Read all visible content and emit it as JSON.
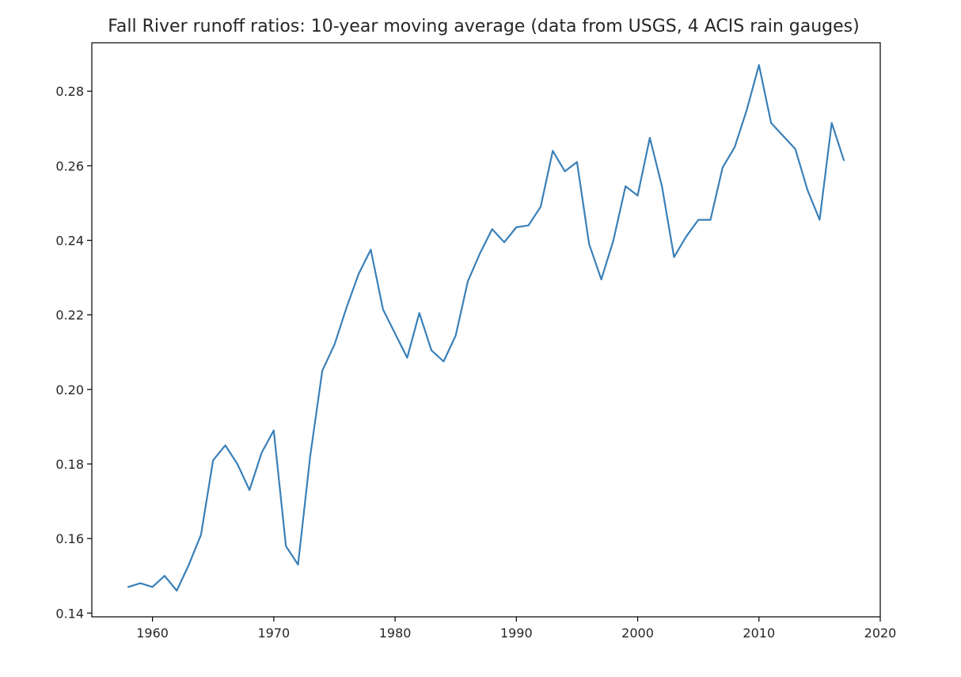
{
  "chart_data": {
    "type": "line",
    "title": "Fall River runoff ratios: 10-year moving average (data from USGS, 4 ACIS rain gauges)",
    "xlabel": "",
    "ylabel": "",
    "xlim": [
      1955,
      2020
    ],
    "ylim": [
      0.139,
      0.293
    ],
    "xticks": [
      1960,
      1970,
      1980,
      1990,
      2000,
      2010,
      2020
    ],
    "xtick_labels": [
      "1960",
      "1970",
      "1980",
      "1990",
      "2000",
      "2010",
      "2020"
    ],
    "yticks": [
      0.14,
      0.16,
      0.18,
      0.2,
      0.22,
      0.24,
      0.26,
      0.28
    ],
    "ytick_labels": [
      "0.14",
      "0.16",
      "0.18",
      "0.20",
      "0.22",
      "0.24",
      "0.26",
      "0.28"
    ],
    "grid": false,
    "line_color": "#3a80b8",
    "series": [
      {
        "x": [
          1958,
          1959,
          1960,
          1961,
          1962,
          1963,
          1964,
          1965,
          1966,
          1967,
          1968,
          1969,
          1970,
          1971,
          1972,
          1973,
          1974,
          1975,
          1976,
          1977,
          1978,
          1979,
          1980,
          1981,
          1982,
          1983,
          1984,
          1985,
          1986,
          1987,
          1988,
          1989,
          1990,
          1991,
          1992,
          1993,
          1994,
          1995,
          1996,
          1997,
          1998,
          1999,
          2000,
          2001,
          2002,
          2003,
          2004,
          2005,
          2006,
          2007,
          2008,
          2009,
          2010,
          2011,
          2012,
          2013,
          2014,
          2015,
          2016,
          2017
        ],
        "values": [
          0.147,
          0.148,
          0.147,
          0.15,
          0.146,
          0.153,
          0.161,
          0.181,
          0.185,
          0.18,
          0.173,
          0.183,
          0.189,
          0.158,
          0.153,
          0.182,
          0.205,
          0.212,
          0.222,
          0.231,
          0.2375,
          0.2215,
          0.215,
          0.2085,
          0.2205,
          0.2105,
          0.2075,
          0.2145,
          0.229,
          0.2365,
          0.243,
          0.2395,
          0.2435,
          0.244,
          0.249,
          0.264,
          0.2585,
          0.261,
          0.239,
          0.2295,
          0.24,
          0.2545,
          0.252,
          0.2675,
          0.2545,
          0.2355,
          0.241,
          0.2455,
          0.2455,
          0.2595,
          0.265,
          0.275,
          0.287,
          0.2715,
          0.268,
          0.2645,
          0.2535,
          0.2455,
          0.2715,
          0.2615
        ]
      }
    ]
  }
}
